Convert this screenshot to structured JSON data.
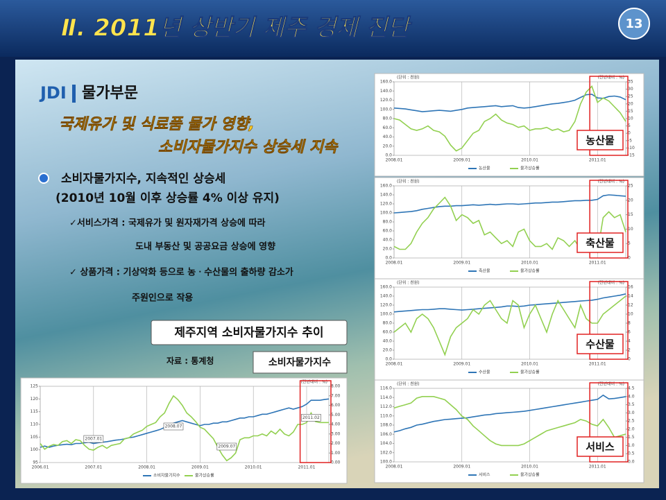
{
  "header": {
    "title": "Ⅱ. 2011년 상반기 제주 경제 진단",
    "page_number": 13
  },
  "section": {
    "logo": "JDI",
    "title": "물가부문"
  },
  "headline": [
    "국제유가 및 식료품 물가 영향,",
    "소비자물가지수 상승세 지속"
  ],
  "bullet": {
    "title": "소비자물가지수, 지속적인 상승세",
    "subtitle": "(2010년 10월 이후 상승률 4% 이상 유지)"
  },
  "items": [
    "✓서비스가격 : 국제유가 및 원자재가격 상승에 따라",
    "도내  부동산 및 공공요금 상승에 영향",
    "✓ 상품가격 : 기상악화 등으로 농ㆍ수산물의 출하량 감소가",
    "주원인으로 작용"
  ],
  "caption": {
    "title": "제주지역 소비자물가지수 추이",
    "source": "자료 : 통계청",
    "label": "소비자물가지수"
  },
  "chart_data": [
    {
      "type": "line",
      "annotation": "농산물",
      "y_label": "(단위 : 천원)",
      "y2_label": "(전년대비 : %)",
      "categories": [
        "2008.01",
        null,
        null,
        null,
        null,
        null,
        null,
        null,
        null,
        null,
        null,
        null,
        "2009.01",
        null,
        null,
        null,
        null,
        null,
        null,
        null,
        null,
        null,
        null,
        null,
        "2010.01",
        null,
        null,
        null,
        null,
        null,
        null,
        null,
        null,
        null,
        null,
        null,
        "2011.01",
        null,
        null,
        null,
        null,
        null
      ],
      "ylim": [
        0,
        160
      ],
      "yticks": [
        {
          "value": 0,
          "label": "0.0"
        },
        {
          "value": 20,
          "label": "20.0"
        },
        {
          "value": 40,
          "label": "40.0"
        },
        {
          "value": 60,
          "label": "60.0"
        },
        {
          "value": 80,
          "label": "80.0"
        },
        {
          "value": 100,
          "label": "100.0"
        },
        {
          "value": 120,
          "label": "120.0"
        },
        {
          "value": 140,
          "label": "140.0"
        },
        {
          "value": 160,
          "label": "160.0"
        }
      ],
      "y2lim": [
        -15,
        35
      ],
      "y2ticks": [
        -15,
        -10,
        -5,
        0,
        5,
        10,
        15,
        20,
        25,
        30,
        35
      ],
      "series": [
        {
          "name": "농산물",
          "color": "#2e75b6",
          "values": [
            103,
            102,
            101,
            99,
            97,
            95,
            96,
            97,
            98,
            97,
            96,
            98,
            100,
            103,
            104,
            105,
            106,
            107,
            108,
            106,
            107,
            108,
            104,
            103,
            104,
            106,
            108,
            110,
            112,
            113,
            115,
            117,
            120,
            126,
            132,
            133,
            125,
            124,
            128,
            129,
            127,
            121
          ]
        },
        {
          "name": "물가상승률",
          "color": "#92d050",
          "axis": "y2",
          "values": [
            10,
            9,
            6,
            3,
            2,
            3,
            5,
            2,
            1,
            -2,
            -8,
            -12,
            -10,
            -5,
            0,
            2,
            8,
            10,
            13,
            9,
            7,
            6,
            4,
            5,
            2,
            3,
            3,
            4,
            2,
            3,
            1,
            2,
            8,
            20,
            28,
            32,
            21,
            24,
            22,
            18,
            14,
            8
          ]
        }
      ]
    },
    {
      "type": "line",
      "annotation": "축산물",
      "y_label": "(단위 : 천원)",
      "y2_label": "(전년대비 : %)",
      "categories": [
        "2008.01",
        null,
        null,
        null,
        null,
        null,
        null,
        null,
        null,
        null,
        null,
        null,
        "2009.01",
        null,
        null,
        null,
        null,
        null,
        null,
        null,
        null,
        null,
        null,
        null,
        "2010.01",
        null,
        null,
        null,
        null,
        null,
        null,
        null,
        null,
        null,
        null,
        null,
        "2011.01",
        null,
        null,
        null,
        null,
        null
      ],
      "ylim": [
        0,
        160
      ],
      "yticks": [
        {
          "value": 0,
          "label": "0.0"
        },
        {
          "value": 20,
          "label": "20.0"
        },
        {
          "value": 40,
          "label": "40.0"
        },
        {
          "value": 60,
          "label": "60.0"
        },
        {
          "value": 80,
          "label": "80.0"
        },
        {
          "value": 100,
          "label": "100.0"
        },
        {
          "value": 120,
          "label": "120.0"
        },
        {
          "value": 140,
          "label": "140.0"
        },
        {
          "value": 160,
          "label": "160.0"
        }
      ],
      "y2lim": [
        0,
        25
      ],
      "y2ticks": [
        0,
        5,
        10,
        15,
        20,
        25
      ],
      "series": [
        {
          "name": "축산물",
          "color": "#2e75b6",
          "values": [
            100,
            101,
            102,
            103,
            105,
            108,
            110,
            112,
            114,
            115,
            115,
            116,
            116,
            117,
            118,
            117,
            118,
            119,
            118,
            119,
            120,
            120,
            119,
            120,
            121,
            122,
            122,
            123,
            124,
            124,
            125,
            126,
            127,
            127,
            128,
            128,
            130,
            138,
            140,
            139,
            138,
            137
          ]
        },
        {
          "name": "물가상승률",
          "color": "#92d050",
          "axis": "y2",
          "values": [
            4,
            3,
            3,
            5,
            9,
            12,
            14,
            17,
            19,
            21,
            18,
            13,
            15,
            14,
            12,
            13,
            8,
            9,
            7,
            5,
            6,
            4,
            9,
            10,
            6,
            4,
            4,
            5,
            3,
            7,
            6,
            4,
            6,
            3,
            6,
            4,
            2,
            14,
            16,
            14,
            15,
            9
          ]
        }
      ]
    },
    {
      "type": "line",
      "annotation": "수산물",
      "y_label": "(단위 : 천원)",
      "y2_label": "(전년대비 : %)",
      "categories": [
        "2008.01",
        null,
        null,
        null,
        null,
        null,
        null,
        null,
        null,
        null,
        null,
        null,
        "2009.01",
        null,
        null,
        null,
        null,
        null,
        null,
        null,
        null,
        null,
        null,
        null,
        "2010.01",
        null,
        null,
        null,
        null,
        null,
        null,
        null,
        null,
        null,
        null,
        null,
        "2011.01",
        null,
        null,
        null,
        null,
        null
      ],
      "ylim": [
        0,
        160
      ],
      "yticks": [
        {
          "value": 0,
          "label": "0.0"
        },
        {
          "value": 20,
          "label": "20.0"
        },
        {
          "value": 40,
          "label": "40.0"
        },
        {
          "value": 60,
          "label": "60.0"
        },
        {
          "value": 80,
          "label": "80.0"
        },
        {
          "value": 100,
          "label": "100.0"
        },
        {
          "value": 120,
          "label": "120.0"
        },
        {
          "value": 140,
          "label": "140.0"
        },
        {
          "value": 160,
          "label": "160.0"
        }
      ],
      "y2lim": [
        0,
        16
      ],
      "y2ticks": [
        0,
        2,
        4,
        6,
        8,
        10,
        12,
        14,
        16
      ],
      "series": [
        {
          "name": "수산물",
          "color": "#2e75b6",
          "values": [
            105,
            106,
            107,
            108,
            109,
            110,
            110,
            111,
            112,
            112,
            111,
            110,
            109,
            110,
            111,
            112,
            113,
            114,
            115,
            116,
            118,
            118,
            117,
            118,
            120,
            121,
            122,
            123,
            124,
            125,
            126,
            127,
            128,
            129,
            130,
            131,
            133,
            136,
            138,
            140,
            142,
            145
          ]
        },
        {
          "name": "물가상승률",
          "color": "#92d050",
          "axis": "y2",
          "values": [
            6,
            7,
            8,
            6,
            9,
            10,
            9,
            7,
            4,
            1,
            5,
            7,
            8,
            9,
            11,
            10,
            12,
            13,
            11,
            9,
            8,
            13,
            12,
            7,
            10,
            12,
            9,
            6,
            10,
            13,
            11,
            9,
            7,
            12,
            9,
            8,
            8,
            10,
            11,
            12,
            13,
            14
          ]
        }
      ]
    },
    {
      "type": "line",
      "annotation": "서비스",
      "y_label": "(단위 : 천원)",
      "y2_label": "(전년대비 : %)",
      "categories": [
        "2008.01",
        null,
        null,
        null,
        null,
        null,
        null,
        null,
        null,
        null,
        null,
        null,
        "2009.01",
        null,
        null,
        null,
        null,
        null,
        null,
        null,
        null,
        null,
        null,
        null,
        "2010.01",
        null,
        null,
        null,
        null,
        null,
        null,
        null,
        null,
        null,
        null,
        null,
        "2011.01",
        null,
        null,
        null,
        null,
        null
      ],
      "ylim": [
        100,
        116
      ],
      "yticks": [
        {
          "value": 100,
          "label": "100.0"
        },
        {
          "value": 102,
          "label": "102.0"
        },
        {
          "value": 104,
          "label": "104.0"
        },
        {
          "value": 106,
          "label": "106.0"
        },
        {
          "value": 108,
          "label": "108.0"
        },
        {
          "value": 110,
          "label": "110.0"
        },
        {
          "value": 112,
          "label": "112.0"
        },
        {
          "value": 114,
          "label": "114.0"
        },
        {
          "value": 116,
          "label": "116.0"
        }
      ],
      "y2lim": [
        0,
        4.5
      ],
      "y2ticks": [
        {
          "value": 0,
          "label": "0.0"
        },
        0.5,
        {
          "value": 1,
          "label": "1.0"
        },
        1.5,
        {
          "value": 2,
          "label": "2.0"
        },
        2.5,
        {
          "value": 3,
          "label": "3.0"
        },
        3.5,
        {
          "value": 4,
          "label": "4.0"
        },
        4.5
      ],
      "series": [
        {
          "name": "서비스",
          "color": "#2e75b6",
          "values": [
            106.5,
            106.8,
            107.2,
            107.5,
            108,
            108.2,
            108.5,
            108.8,
            109,
            109.2,
            109.3,
            109.4,
            109.5,
            109.6,
            109.8,
            110,
            110.2,
            110.3,
            110.5,
            110.6,
            110.7,
            110.8,
            110.9,
            111,
            111.2,
            111.4,
            111.6,
            111.8,
            112,
            112.2,
            112.4,
            112.6,
            112.8,
            113,
            113.2,
            113.4,
            113.6,
            114.5,
            113.7,
            113.8,
            114,
            114.2
          ]
        },
        {
          "name": "물가상승률",
          "color": "#92d050",
          "axis": "y2",
          "values": [
            3.3,
            3.4,
            3.5,
            3.6,
            3.9,
            4.0,
            4.0,
            4.0,
            3.9,
            3.8,
            3.5,
            3.2,
            2.8,
            2.6,
            2.2,
            1.9,
            1.6,
            1.3,
            1.1,
            1.0,
            1.0,
            1.0,
            1.0,
            1.1,
            1.3,
            1.5,
            1.7,
            1.9,
            2.0,
            2.1,
            2.2,
            2.3,
            2.4,
            2.6,
            2.5,
            2.3,
            2.2,
            2.6,
            2.1,
            1.5,
            1.6,
            1.7
          ]
        }
      ]
    },
    {
      "type": "line",
      "y2_label": "(전년대비 : %)",
      "annotations": [
        "2008.07",
        "2007.01",
        "2009.07",
        "2011.02"
      ],
      "categories": [
        "2006.01",
        null,
        null,
        null,
        null,
        null,
        null,
        null,
        null,
        null,
        null,
        null,
        "2007.01",
        null,
        null,
        null,
        null,
        null,
        null,
        null,
        null,
        null,
        null,
        null,
        "2008.01",
        null,
        null,
        null,
        null,
        null,
        null,
        null,
        null,
        null,
        null,
        null,
        "2009.01",
        null,
        null,
        null,
        null,
        null,
        null,
        null,
        null,
        null,
        null,
        null,
        "2010.01",
        null,
        null,
        null,
        null,
        null,
        null,
        null,
        null,
        null,
        null,
        null,
        "2011.01",
        null,
        null,
        null,
        null,
        null
      ],
      "ylim": [
        95,
        125
      ],
      "yticks": [
        95,
        100,
        105,
        110,
        115,
        120,
        125
      ],
      "y2lim": [
        0,
        8
      ],
      "y2ticks": [
        {
          "value": 0,
          "label": "0.00"
        },
        {
          "value": 1,
          "label": "1.00"
        },
        {
          "value": 2,
          "label": "2.00"
        },
        {
          "value": 3,
          "label": "3.00"
        },
        {
          "value": 4,
          "label": "4.00"
        },
        {
          "value": 5,
          "label": "5.00"
        },
        {
          "value": 6,
          "label": "6.00"
        },
        {
          "value": 7,
          "label": "7.00"
        },
        {
          "value": 8,
          "label": "8.00"
        }
      ],
      "series": [
        {
          "name": "소비자물가지수",
          "color": "#2e75b6",
          "values": [
            101,
            101.5,
            101,
            101.5,
            101.8,
            102,
            102.2,
            102,
            102.5,
            102.5,
            102.8,
            103,
            102.5,
            102.8,
            103,
            103.2,
            103.5,
            103.8,
            104,
            104.3,
            104.8,
            105,
            105.5,
            106,
            106.5,
            107,
            107.5,
            108,
            108.8,
            109.5,
            110.5,
            111,
            111.5,
            111,
            110.5,
            110,
            109.5,
            110,
            110,
            110.5,
            110.5,
            111,
            111,
            111.5,
            112,
            112.5,
            112.5,
            113,
            113,
            113.5,
            114,
            114,
            114.5,
            115,
            115.5,
            116,
            116.5,
            116,
            116.5,
            117,
            118,
            119.5,
            119.5,
            119.5,
            119.8,
            120
          ]
        },
        {
          "name": "물가상승률",
          "color": "#92d050",
          "axis": "y2",
          "values": [
            2.0,
            1.4,
            1.7,
            1.9,
            1.8,
            2.2,
            2.3,
            2.0,
            2.4,
            2.3,
            1.8,
            1.4,
            1.3,
            1.6,
            1.8,
            1.5,
            1.8,
            1.9,
            2.0,
            2.5,
            2.6,
            3.0,
            3.2,
            3.4,
            3.8,
            4.0,
            4.2,
            4.8,
            5.2,
            6.2,
            7.0,
            6.6,
            6.0,
            5.2,
            4.8,
            4.3,
            3.7,
            3.5,
            3.0,
            2.5,
            1.6,
            0.8,
            0.2,
            0.5,
            1.0,
            2.4,
            2.6,
            2.6,
            2.8,
            2.8,
            3.0,
            2.8,
            3.3,
            3.0,
            3.5,
            3.0,
            2.8,
            3.2,
            4.0,
            4.0,
            4.2,
            5.2,
            4.3,
            4.2,
            4.2,
            4.2
          ]
        }
      ]
    }
  ]
}
